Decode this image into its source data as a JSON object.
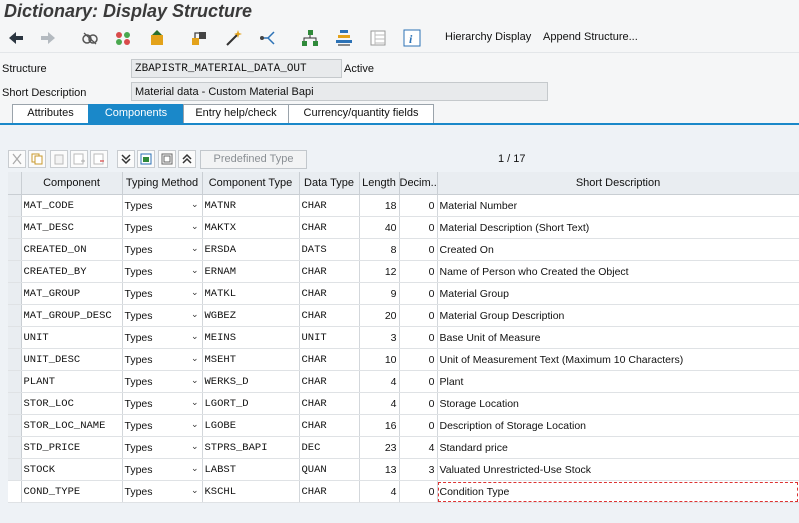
{
  "window": {
    "title": "Dictionary: Display Structure"
  },
  "toolbar": {
    "icons": [
      "back-arrow-icon",
      "forward-arrow-icon",
      "display-change-icon",
      "other-object-icon",
      "activate-icon",
      "check-icon",
      "magic-wand-icon",
      "where-used-icon",
      "object-list-icon",
      "navigation-icon",
      "layout-icon",
      "info-icon"
    ],
    "hierarchy_display": "Hierarchy Display",
    "append_structure": "Append Structure..."
  },
  "header": {
    "structure_label": "Structure",
    "structure_value": "ZBAPISTR_MATERIAL_DATA_OUT",
    "status": "Active",
    "short_desc_label": "Short Description",
    "short_desc_value": "Material data - Custom Material Bapi"
  },
  "tabs": [
    {
      "label": "Attributes",
      "active": false
    },
    {
      "label": "Components",
      "active": true
    },
    {
      "label": "Entry help/check",
      "active": false
    },
    {
      "label": "Currency/quantity fields",
      "active": false
    }
  ],
  "panel_toolbar": {
    "predefined_type": "Predefined Type",
    "pager": "1 /   17"
  },
  "columns": [
    "Component",
    "Typing Method",
    "Component Type",
    "Data Type",
    "Length",
    "Decim...",
    "Short Description"
  ],
  "rows": [
    {
      "component": "MAT_CODE",
      "typing": "Types",
      "comp_type": "MATNR",
      "data_type": "CHAR",
      "length": "18",
      "decimals": "0",
      "desc": "Material Number"
    },
    {
      "component": "MAT_DESC",
      "typing": "Types",
      "comp_type": "MAKTX",
      "data_type": "CHAR",
      "length": "40",
      "decimals": "0",
      "desc": "Material Description (Short Text)"
    },
    {
      "component": "CREATED_ON",
      "typing": "Types",
      "comp_type": "ERSDA",
      "data_type": "DATS",
      "length": "8",
      "decimals": "0",
      "desc": "Created On"
    },
    {
      "component": "CREATED_BY",
      "typing": "Types",
      "comp_type": "ERNAM",
      "data_type": "CHAR",
      "length": "12",
      "decimals": "0",
      "desc": "Name of Person who Created the Object"
    },
    {
      "component": "MAT_GROUP",
      "typing": "Types",
      "comp_type": "MATKL",
      "data_type": "CHAR",
      "length": "9",
      "decimals": "0",
      "desc": "Material Group"
    },
    {
      "component": "MAT_GROUP_DESC",
      "typing": "Types",
      "comp_type": "WGBEZ",
      "data_type": "CHAR",
      "length": "20",
      "decimals": "0",
      "desc": "Material Group Description"
    },
    {
      "component": "UNIT",
      "typing": "Types",
      "comp_type": "MEINS",
      "data_type": "UNIT",
      "length": "3",
      "decimals": "0",
      "desc": "Base Unit of Measure"
    },
    {
      "component": "UNIT_DESC",
      "typing": "Types",
      "comp_type": "MSEHT",
      "data_type": "CHAR",
      "length": "10",
      "decimals": "0",
      "desc": "Unit of Measurement Text (Maximum 10 Characters)"
    },
    {
      "component": "PLANT",
      "typing": "Types",
      "comp_type": "WERKS_D",
      "data_type": "CHAR",
      "length": "4",
      "decimals": "0",
      "desc": "Plant"
    },
    {
      "component": "STOR_LOC",
      "typing": "Types",
      "comp_type": "LGORT_D",
      "data_type": "CHAR",
      "length": "4",
      "decimals": "0",
      "desc": "Storage Location"
    },
    {
      "component": "STOR_LOC_NAME",
      "typing": "Types",
      "comp_type": "LGOBE",
      "data_type": "CHAR",
      "length": "16",
      "decimals": "0",
      "desc": "Description of Storage Location"
    },
    {
      "component": "STD_PRICE",
      "typing": "Types",
      "comp_type": "STPRS_BAPI",
      "data_type": "DEC",
      "length": "23",
      "decimals": "4",
      "desc": "Standard price"
    },
    {
      "component": "STOCK",
      "typing": "Types",
      "comp_type": "LABST",
      "data_type": "QUAN",
      "length": "13",
      "decimals": "3",
      "desc": "Valuated Unrestricted-Use Stock"
    },
    {
      "component": "COND_TYPE",
      "typing": "Types",
      "comp_type": "KSCHL",
      "data_type": "CHAR",
      "length": "4",
      "decimals": "0",
      "desc": "Condition Type"
    }
  ],
  "colors": {
    "accent": "#1a88c9",
    "panel": "#eef2f6",
    "header_cell": "#e9edf1"
  }
}
